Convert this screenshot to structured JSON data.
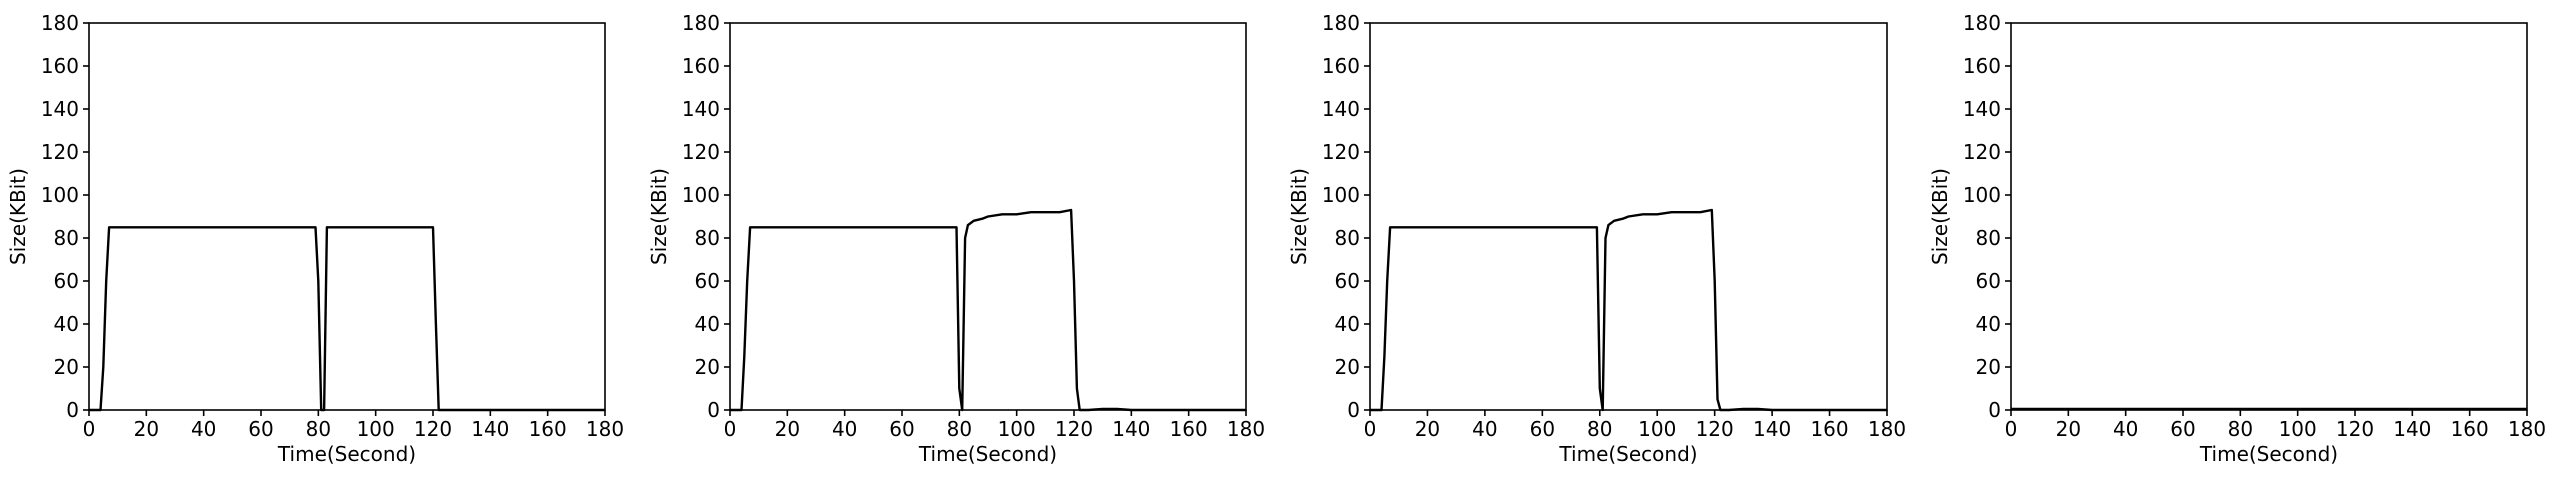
{
  "chart_data": [
    {
      "type": "line",
      "xlabel": "Time(Second)",
      "ylabel": "Size(KBit)",
      "xlim": [
        0,
        180
      ],
      "ylim": [
        0,
        180
      ],
      "xticks": [
        0,
        20,
        40,
        60,
        80,
        100,
        120,
        140,
        160,
        180
      ],
      "yticks": [
        0,
        20,
        40,
        60,
        80,
        100,
        120,
        140,
        160,
        180
      ],
      "grid": false,
      "series": [
        {
          "x": [
            0,
            4,
            5,
            6,
            7,
            10,
            20,
            30,
            40,
            50,
            60,
            70,
            79,
            80,
            81,
            82,
            83,
            84,
            90,
            100,
            110,
            120,
            121,
            122,
            125,
            130,
            140,
            150,
            160,
            170,
            180
          ],
          "values": [
            0,
            0,
            20,
            60,
            85,
            85,
            85,
            85,
            85,
            85,
            85,
            85,
            85,
            60,
            0,
            0,
            85,
            85,
            85,
            85,
            85,
            85,
            40,
            0,
            0,
            0,
            0,
            0,
            0,
            0,
            0
          ]
        }
      ]
    },
    {
      "type": "line",
      "xlabel": "Time(Second)",
      "ylabel": "Size(KBit)",
      "xlim": [
        0,
        180
      ],
      "ylim": [
        0,
        180
      ],
      "xticks": [
        0,
        20,
        40,
        60,
        80,
        100,
        120,
        140,
        160,
        180
      ],
      "yticks": [
        0,
        20,
        40,
        60,
        80,
        100,
        120,
        140,
        160,
        180
      ],
      "grid": false,
      "series": [
        {
          "x": [
            0,
            4,
            5,
            6,
            7,
            10,
            20,
            30,
            40,
            50,
            60,
            70,
            79,
            80,
            81,
            82,
            83,
            85,
            88,
            90,
            95,
            100,
            105,
            110,
            115,
            119,
            120,
            121,
            122,
            125,
            130,
            135,
            140,
            150,
            160,
            170,
            180
          ],
          "values": [
            0,
            0,
            25,
            60,
            85,
            85,
            85,
            85,
            85,
            85,
            85,
            85,
            85,
            10,
            0,
            80,
            86,
            88,
            89,
            90,
            91,
            91,
            92,
            92,
            92,
            93,
            60,
            10,
            0,
            0,
            0.5,
            0.5,
            0,
            0,
            0,
            0,
            0
          ]
        }
      ]
    },
    {
      "type": "line",
      "xlabel": "Time(Second)",
      "ylabel": "Size(KBit)",
      "xlim": [
        0,
        180
      ],
      "ylim": [
        0,
        180
      ],
      "xticks": [
        0,
        20,
        40,
        60,
        80,
        100,
        120,
        140,
        160,
        180
      ],
      "yticks": [
        0,
        20,
        40,
        60,
        80,
        100,
        120,
        140,
        160,
        180
      ],
      "grid": false,
      "series": [
        {
          "x": [
            0,
            4,
            5,
            6,
            7,
            10,
            20,
            30,
            40,
            50,
            60,
            70,
            79,
            80,
            81,
            82,
            83,
            85,
            88,
            90,
            95,
            100,
            105,
            110,
            115,
            119,
            120,
            121,
            122,
            125,
            130,
            135,
            140,
            150,
            160,
            170,
            180
          ],
          "values": [
            0,
            0,
            25,
            60,
            85,
            85,
            85,
            85,
            85,
            85,
            85,
            85,
            85,
            10,
            0,
            80,
            86,
            88,
            89,
            90,
            91,
            91,
            92,
            92,
            92,
            93,
            60,
            5,
            0,
            0,
            0.5,
            0.5,
            0,
            0,
            0,
            0,
            0
          ]
        }
      ]
    },
    {
      "type": "line",
      "xlabel": "Time(Second)",
      "ylabel": "Size(KBit)",
      "xlim": [
        0,
        180
      ],
      "ylim": [
        0,
        180
      ],
      "xticks": [
        0,
        20,
        40,
        60,
        80,
        100,
        120,
        140,
        160,
        180
      ],
      "yticks": [
        0,
        20,
        40,
        60,
        80,
        100,
        120,
        140,
        160,
        180
      ],
      "grid": false,
      "series": [
        {
          "x": [
            0,
            20,
            40,
            60,
            80,
            100,
            120,
            140,
            160,
            180
          ],
          "values": [
            0.5,
            0.5,
            0.5,
            0.5,
            0.5,
            0.5,
            0.5,
            0.5,
            0.5,
            0.5
          ]
        }
      ]
    }
  ]
}
